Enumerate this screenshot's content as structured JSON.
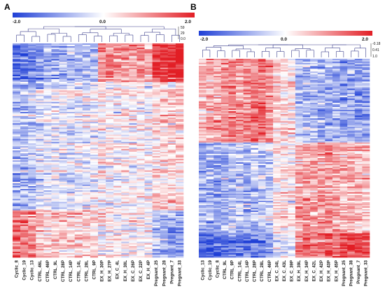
{
  "chart_data": [
    {
      "type": "heatmap",
      "panel_label": "A",
      "color_scale": {
        "min_label": "-2.0",
        "mid_label": "0.0",
        "max_label": "2.0",
        "min_color": "#1f3fd6",
        "mid_color": "#ffffff",
        "max_color": "#e21e25"
      },
      "dendrogram_scale": [
        "59",
        "29",
        "0.0"
      ],
      "columns": [
        "Cyclic_8",
        "Cyclic_19",
        "Cyclic_13",
        "CTRL_46L",
        "CTRL_46P",
        "CTRL_9L",
        "CTRL_28P",
        "CTRL_14P",
        "CTRL_14L",
        "CTRL_28L",
        "CTRL_9P",
        "EX_H_30P",
        "EX_H_27P",
        "EX_C_4L",
        "EX_H_30L",
        "EX_C_26P",
        "EX_C_22P",
        "EX_H_4P",
        "Pregnant_25",
        "Pregnant_28",
        "Pregnant_7",
        "Pregnant_33"
      ],
      "row_clusters": [
        {
          "rows_fraction": 0.18,
          "column_means": [
            -1.6,
            -1.5,
            -1.3,
            -1.2,
            -0.9,
            -0.9,
            -0.9,
            -0.8,
            -0.9,
            -0.8,
            -0.7,
            0.9,
            0.9,
            0.8,
            0.9,
            0.8,
            0.9,
            0.6,
            1.6,
            1.7,
            1.8,
            1.9
          ]
        },
        {
          "rows_fraction": 0.6,
          "column_means": [
            -0.7,
            -0.7,
            -0.6,
            -0.3,
            -0.2,
            -0.2,
            -0.2,
            -0.2,
            -0.2,
            -0.2,
            -0.1,
            0.1,
            0.1,
            0.0,
            0.1,
            0.0,
            0.1,
            0.0,
            0.4,
            0.3,
            0.4,
            0.4
          ]
        },
        {
          "rows_fraction": 0.22,
          "column_means": [
            1.2,
            1.1,
            1.0,
            0.6,
            0.4,
            0.5,
            0.4,
            0.4,
            0.5,
            0.4,
            0.3,
            0.1,
            0.1,
            0.1,
            0.0,
            0.1,
            0.0,
            0.0,
            -0.6,
            -0.8,
            -0.9,
            -1.0
          ]
        }
      ]
    },
    {
      "type": "heatmap",
      "panel_label": "B",
      "color_scale": {
        "min_label": "-2.0",
        "mid_label": "0.0",
        "max_label": "2.0",
        "min_color": "#1f3fd6",
        "mid_color": "#ffffff",
        "max_color": "#e21e25"
      },
      "dendrogram_scale": [
        "-0.18",
        "0.41",
        "1.0"
      ],
      "columns": [
        "Cyclic_13",
        "Cyclic_19",
        "Cyclic_8",
        "CTRL_9L",
        "CTRL_9P",
        "CTRL_14L",
        "CTRL_14P",
        "CTRL_28P",
        "CTRL_28L",
        "CTRL_46P",
        "EX_C_34L",
        "EX_C_43L",
        "EX_C_39P",
        "EX_H_39L",
        "EX_H_34P",
        "EX_C_42L",
        "EX_H_42P",
        "EX_H_43P",
        "EX_H_45P",
        "Pregnant_25",
        "Pregnant_38",
        "Pregnant_7",
        "Pregnant_33"
      ],
      "row_clusters": [
        {
          "rows_fraction": 0.42,
          "column_means": [
            0.7,
            0.7,
            0.8,
            1.0,
            1.1,
            1.0,
            1.1,
            1.2,
            1.3,
            1.0,
            0.5,
            0.4,
            0.3,
            -0.6,
            -0.7,
            -0.6,
            -0.8,
            -0.8,
            -0.7,
            -0.9,
            -0.8,
            -0.9,
            -0.8
          ]
        },
        {
          "rows_fraction": 0.46,
          "column_means": [
            -0.8,
            -0.8,
            -0.9,
            -0.7,
            -0.7,
            -0.6,
            -0.7,
            -0.6,
            -0.6,
            -0.5,
            0.2,
            0.3,
            0.2,
            0.7,
            0.8,
            0.8,
            0.9,
            0.9,
            0.9,
            0.6,
            0.7,
            0.6,
            0.5
          ]
        },
        {
          "rows_fraction": 0.12,
          "column_means": [
            -1.8,
            -1.7,
            -1.6,
            -1.5,
            -1.4,
            -1.4,
            -1.3,
            -1.3,
            -1.2,
            -1.1,
            -0.4,
            -0.2,
            -0.2,
            1.1,
            1.3,
            1.2,
            1.4,
            1.5,
            1.3,
            1.6,
            1.7,
            1.7,
            1.6
          ]
        }
      ]
    }
  ]
}
